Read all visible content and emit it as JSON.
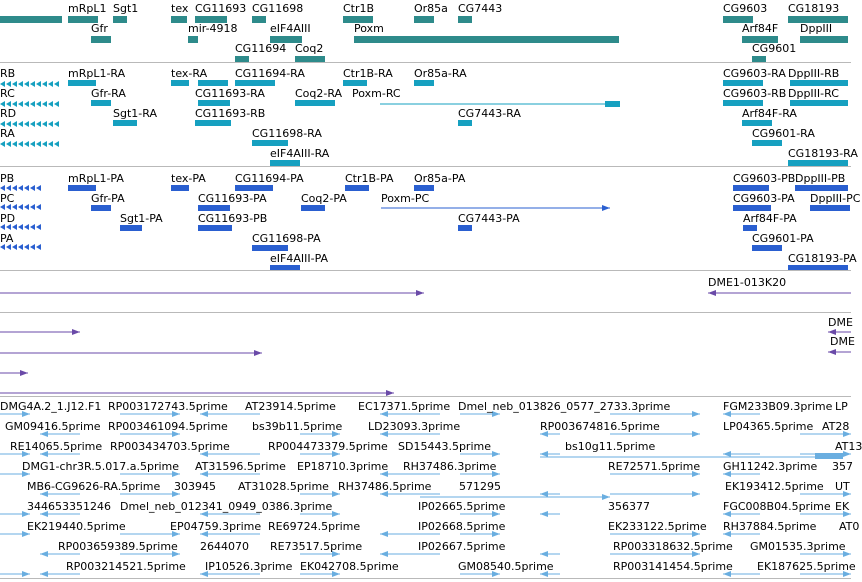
{
  "colors": {
    "gene": "#2e8b8b",
    "transcript": "#16a0c0",
    "protein": "#2a5fd0",
    "contig": "#6a4aa8",
    "est": "#6aaee0",
    "separator": "#b9b9b9"
  },
  "tracks": [
    {
      "id": "genes",
      "name": "genes-track",
      "color": "gene",
      "labels": [
        "mRpL1",
        "Sgt1",
        "tex",
        "CG11693",
        "CG11698",
        "Ctr1B",
        "Or85a",
        "CG7443",
        "CG9603",
        "CG18193",
        "Gfr",
        "mir-4918",
        "eIF4AIII",
        "Poxm",
        "Arf84F",
        "DppIII",
        "CG11694",
        "Coq2",
        "CG9601"
      ]
    },
    {
      "id": "transcripts",
      "name": "transcripts-track",
      "color": "transcript",
      "labels": [
        "RB",
        "mRpL1-RA",
        "tex-RA",
        "CG11694-RA",
        "Ctr1B-RA",
        "Or85a-RA",
        "CG9603-RA",
        "DppIII-RB",
        "RC",
        "Gfr-RA",
        "CG11693-RA",
        "Coq2-RA",
        "Poxm-RC",
        "CG9603-RB",
        "DppIII-RC",
        "RD",
        "Sgt1-RA",
        "CG11693-RB",
        "CG7443-RA",
        "Arf84F-RA",
        "RA",
        "CG11698-RA",
        "CG9601-RA",
        "eIF4AIII-RA",
        "CG18193-RA"
      ]
    },
    {
      "id": "proteins",
      "name": "proteins-track",
      "color": "protein",
      "labels": [
        "PB",
        "mRpL1-PA",
        "tex-PA",
        "CG11694-PA",
        "Ctr1B-PA",
        "Or85a-PA",
        "CG9603-PB",
        "DppIII-PB",
        "PC",
        "Gfr-PA",
        "CG11693-PA",
        "Coq2-PA",
        "Poxm-PC",
        "CG9603-PA",
        "DppIII-PC",
        "PD",
        "Sgt1-PA",
        "CG11693-PB",
        "CG7443-PA",
        "Arf84F-PA",
        "PA",
        "CG11698-PA",
        "CG9601-PA",
        "eIF4AIII-PA",
        "CG18193-PA"
      ]
    },
    {
      "id": "contigs",
      "name": "contigs-track",
      "color": "contig",
      "labels": [
        "DME1-013K20"
      ]
    },
    {
      "id": "contigs2",
      "name": "contigs2-track",
      "color": "contig",
      "labels": [
        "DME",
        "DME"
      ]
    },
    {
      "id": "ests",
      "name": "ests-track",
      "color": "est",
      "labels": [
        "DMG4A.2_1.J12.F1",
        "RP003172743.5prime",
        "AT23914.5prime",
        "EC17371.5prime",
        "Dmel_neb_013826_0577_2733.3prime",
        "FGM233B09.3prime",
        "LP",
        "GM09416.5prime",
        "RP003461094.5prime",
        "bs39b11.5prime",
        "LD23093.3prime",
        "RP003674816.5prime",
        "LP04365.5prime",
        "AT28",
        "RE14065.5prime",
        "RP003434703.5prime",
        "RP004473379.5prime",
        "SD15443.5prime",
        "bs10g11.5prime",
        "AT13",
        "DMG1-chr3R.5.017.a.5prime",
        "AT31596.5prime",
        "EP18710.3prime",
        "RH37486.3prime",
        "RE72571.5prime",
        "GH11242.3prime",
        "357",
        "MB6-CG9626-RA.5prime",
        "303945",
        "AT31028.5prime",
        "RH37486.5prime",
        "571295",
        "EK193412.5prime",
        "UT",
        "344653351246",
        "Dmel_neb_012341_0949_0386.3prime",
        "IP02665.5prime",
        "356377",
        "FGC008B04.5prime",
        "EK",
        "EK219440.5prime",
        "EP04759.3prime",
        "RE69724.5prime",
        "IP02668.5prime",
        "EK233122.5prime",
        "RH37884.5prime",
        "AT0",
        "RP003659389.5prime",
        "2644070",
        "RE73517.5prime",
        "IP02667.5prime",
        "RP003318632.5prime",
        "GM01535.3prime",
        "RP003214521.5prime",
        "IP10526.3prime",
        "EK042708.5prime",
        "GM08540.5prime",
        "RP003141454.5prime",
        "EK187625.5prime"
      ]
    }
  ]
}
